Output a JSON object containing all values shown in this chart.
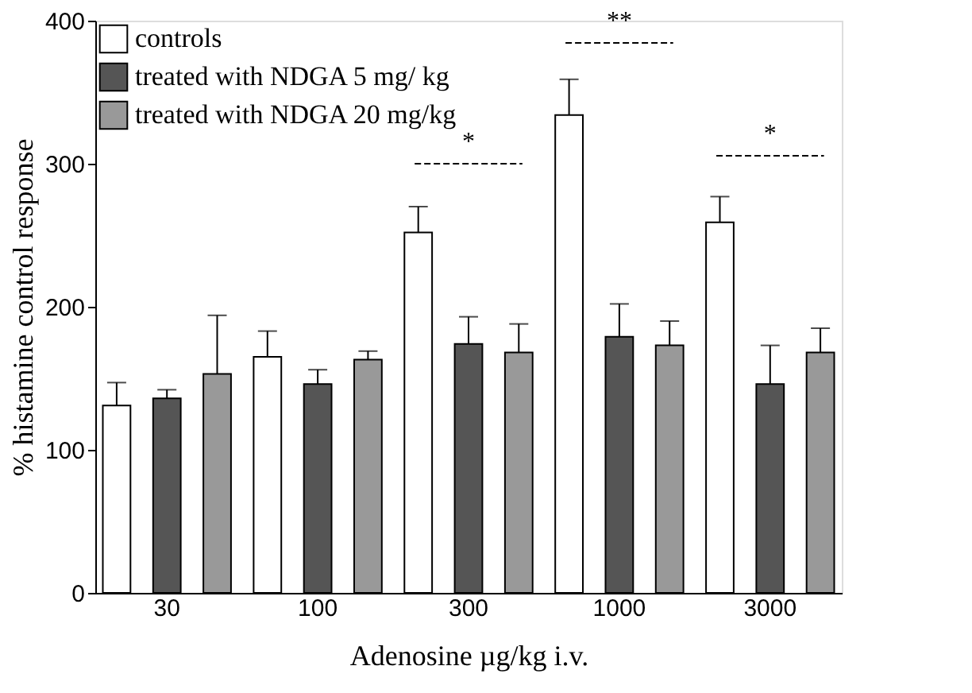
{
  "chart_data": {
    "type": "bar",
    "xlabel": "Adenosine  µg/kg i.v.",
    "ylabel": "% histamine control response",
    "categories": [
      "30",
      "100",
      "300",
      "1000",
      "3000"
    ],
    "series": [
      {
        "name": "controls",
        "color": "#ffffff",
        "values": [
          131,
          165,
          252,
          334,
          259
        ],
        "errors": [
          [
            131,
            147
          ],
          [
            165,
            183
          ],
          [
            252,
            270
          ],
          [
            334,
            359
          ],
          [
            259,
            277
          ]
        ]
      },
      {
        "name": "treated with NDGA 5 mg/ kg",
        "color": "#555555",
        "values": [
          136,
          146,
          174,
          179,
          146
        ],
        "errors": [
          [
            136,
            142
          ],
          [
            146,
            156
          ],
          [
            174,
            193
          ],
          [
            179,
            202
          ],
          [
            146,
            173
          ]
        ]
      },
      {
        "name": "treated with NDGA 20 mg/kg",
        "color": "#999999",
        "values": [
          153,
          163,
          168,
          173,
          168
        ],
        "errors": [
          [
            153,
            194
          ],
          [
            163,
            169
          ],
          [
            168,
            188
          ],
          [
            173,
            190
          ],
          [
            168,
            185
          ]
        ]
      }
    ],
    "annotations": [
      "*",
      "**",
      "*"
    ],
    "ylim": [
      0,
      400
    ],
    "yticks": [
      0,
      100,
      200,
      300,
      400
    ],
    "grid": false,
    "legend": "top left"
  }
}
